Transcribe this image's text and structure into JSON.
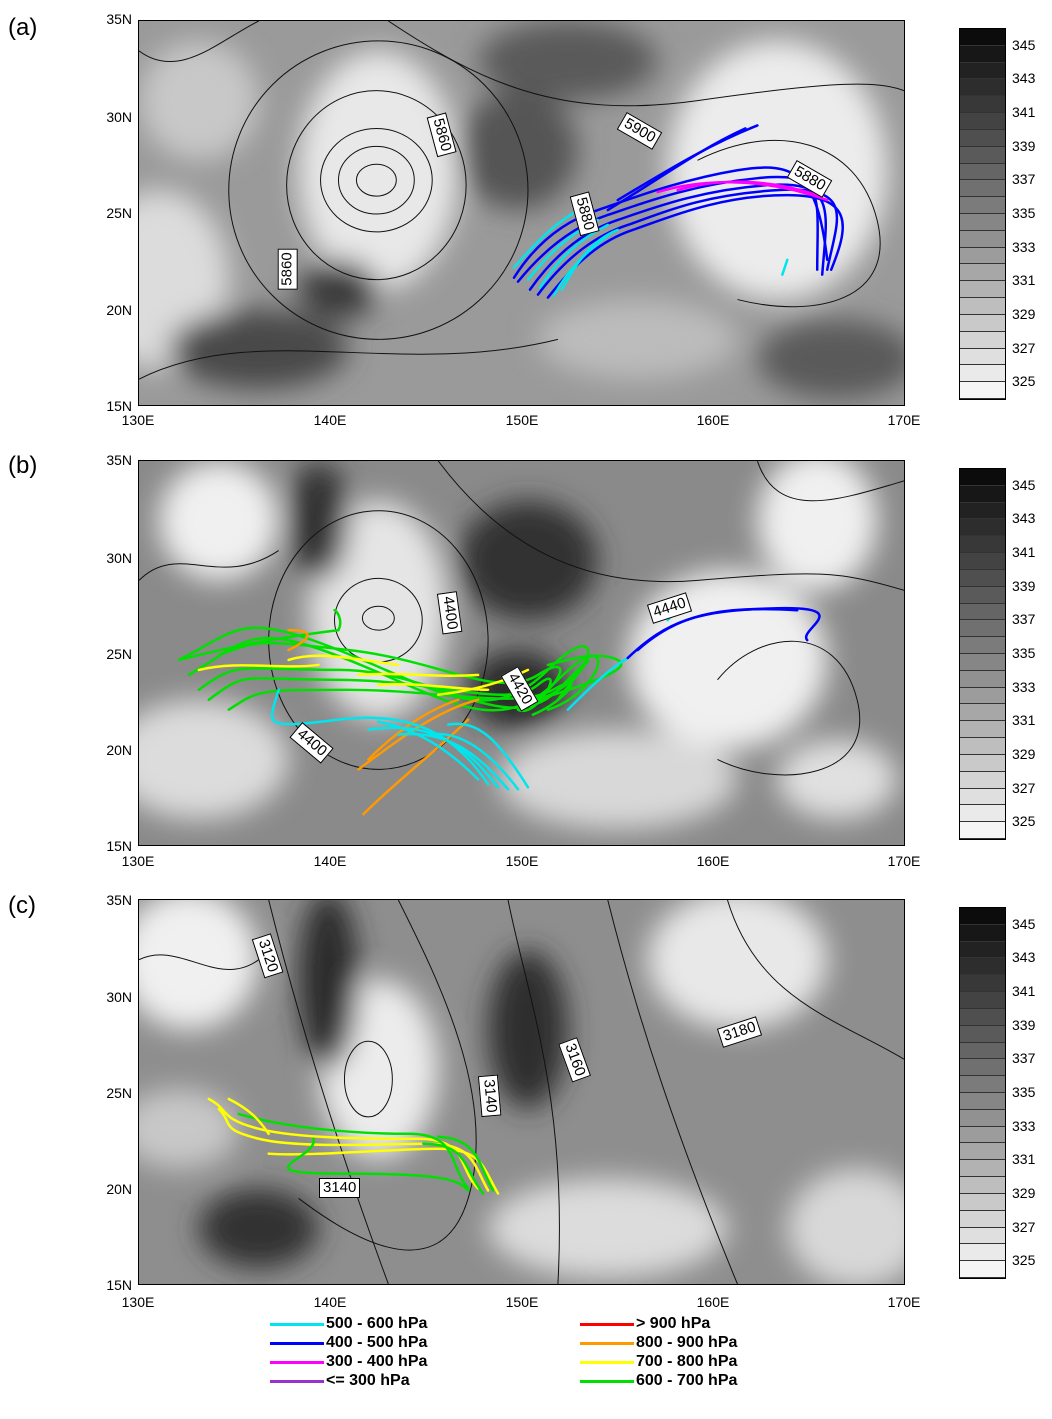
{
  "panels": [
    {
      "letter": "(a)",
      "contour_labels": [
        "5860",
        "5860",
        "5900",
        "5880",
        "5880"
      ],
      "trajectories": [
        {
          "color": "#00e5ee",
          "level": "500 - 600 hPa"
        },
        {
          "color": "#0000ff",
          "level": "400 - 500 hPa"
        },
        {
          "color": "#ff00ff",
          "level": "300 - 400 hPa"
        }
      ]
    },
    {
      "letter": "(b)",
      "contour_labels": [
        "4400",
        "4440",
        "4400",
        "4420"
      ],
      "trajectories": [
        {
          "color": "#00e5ee"
        },
        {
          "color": "#0000ff"
        },
        {
          "color": "#00e000"
        },
        {
          "color": "#ffff00"
        },
        {
          "color": "#ff9900"
        }
      ]
    },
    {
      "letter": "(c)",
      "contour_labels": [
        "3120",
        "3140",
        "3160",
        "3180",
        "3140"
      ],
      "trajectories": [
        {
          "color": "#00e000"
        },
        {
          "color": "#ffff00"
        }
      ]
    }
  ],
  "axes": {
    "y_ticks": [
      "35N",
      "30N",
      "25N",
      "20N",
      "15N"
    ],
    "x_ticks": [
      "130E",
      "140E",
      "150E",
      "160E",
      "170E"
    ]
  },
  "colorbar": {
    "ticks": [
      "345",
      "343",
      "341",
      "339",
      "337",
      "335",
      "333",
      "331",
      "329",
      "327",
      "325"
    ]
  },
  "legend": [
    {
      "label": "500 - 600 hPa",
      "color": "#00e5ee"
    },
    {
      "label": "400 - 500 hPa",
      "color": "#0000ff"
    },
    {
      "label": "300 - 400 hPa",
      "color": "#ff00ff"
    },
    {
      "label": "<= 300 hPa",
      "color": "#9932cc"
    },
    {
      "label": "> 900 hPa",
      "color": "#ff0000"
    },
    {
      "label": "800 - 900 hPa",
      "color": "#ff9900"
    },
    {
      "label": "700 - 800 hPa",
      "color": "#ffff00"
    },
    {
      "label": "600 - 700 hPa",
      "color": "#00e000"
    }
  ],
  "chart_data": {
    "type": "map",
    "x_range": [
      130,
      170
    ],
    "y_range": [
      15,
      35
    ],
    "xlabel": "",
    "ylabel": "",
    "colorbar_range": [
      325,
      345
    ]
  }
}
